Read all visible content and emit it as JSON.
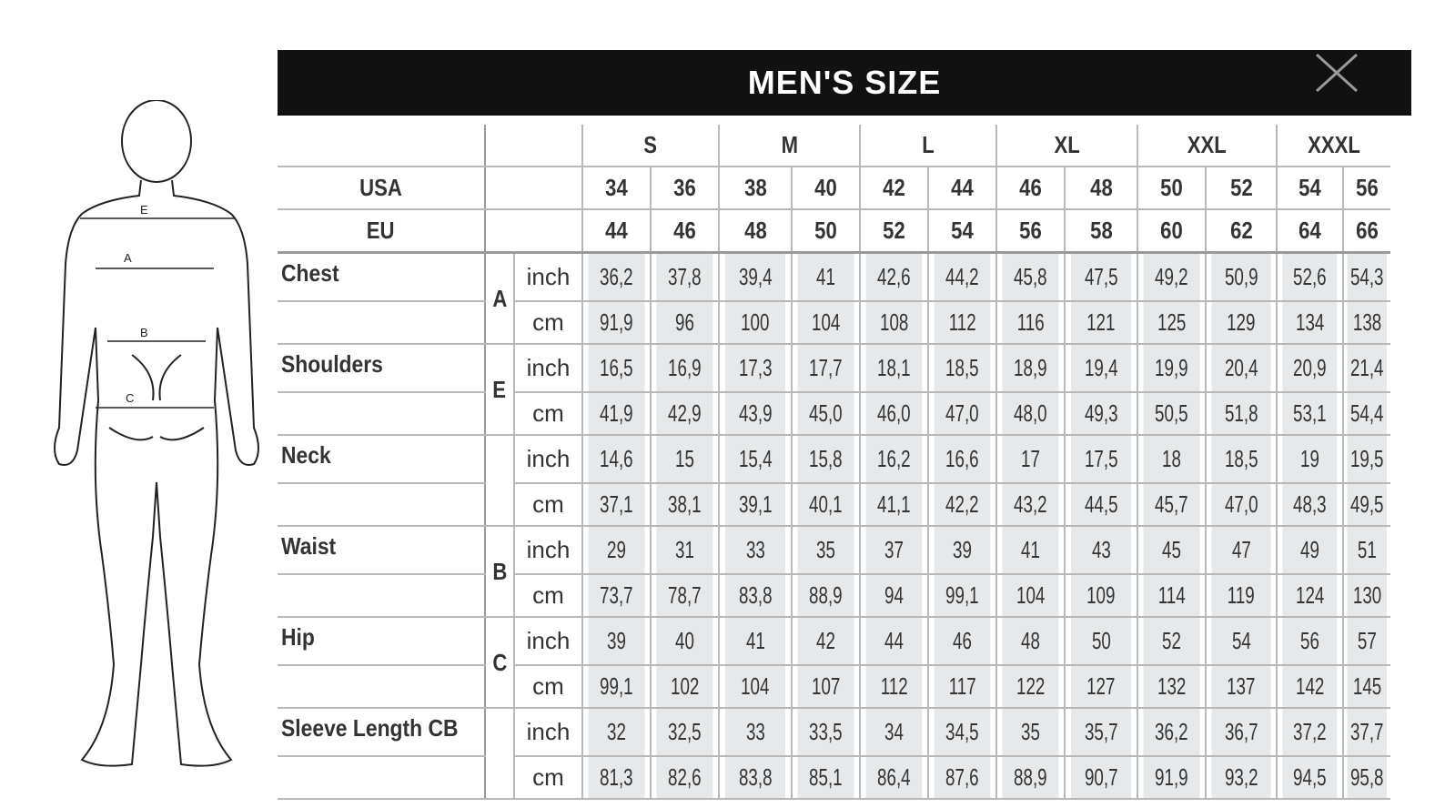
{
  "title": "MEN'S SIZE",
  "close_icon": "close-x-icon",
  "figure_labels": [
    "E",
    "A",
    "B",
    "C"
  ],
  "sizes": [
    "S",
    "M",
    "L",
    "XL",
    "XXL",
    "XXXL"
  ],
  "usa_label": "USA",
  "eu_label": "EU",
  "usa": [
    "34",
    "36",
    "38",
    "40",
    "42",
    "44",
    "46",
    "48",
    "50",
    "52",
    "54",
    "56"
  ],
  "eu": [
    "44",
    "46",
    "48",
    "50",
    "52",
    "54",
    "56",
    "58",
    "60",
    "62",
    "64",
    "66"
  ],
  "measurements": [
    {
      "name": "Chest",
      "letter": "A",
      "inch": [
        "36,2",
        "37,8",
        "39,4",
        "41",
        "42,6",
        "44,2",
        "45,8",
        "47,5",
        "49,2",
        "50,9",
        "52,6",
        "54,3"
      ],
      "cm": [
        "91,9",
        "96",
        "100",
        "104",
        "108",
        "112",
        "116",
        "121",
        "125",
        "129",
        "134",
        "138"
      ]
    },
    {
      "name": "Shoulders",
      "letter": "E",
      "inch": [
        "16,5",
        "16,9",
        "17,3",
        "17,7",
        "18,1",
        "18,5",
        "18,9",
        "19,4",
        "19,9",
        "20,4",
        "20,9",
        "21,4"
      ],
      "cm": [
        "41,9",
        "42,9",
        "43,9",
        "45,0",
        "46,0",
        "47,0",
        "48,0",
        "49,3",
        "50,5",
        "51,8",
        "53,1",
        "54,4"
      ]
    },
    {
      "name": "Neck",
      "letter": "",
      "inch": [
        "14,6",
        "15",
        "15,4",
        "15,8",
        "16,2",
        "16,6",
        "17",
        "17,5",
        "18",
        "18,5",
        "19",
        "19,5"
      ],
      "cm": [
        "37,1",
        "38,1",
        "39,1",
        "40,1",
        "41,1",
        "42,2",
        "43,2",
        "44,5",
        "45,7",
        "47,0",
        "48,3",
        "49,5"
      ]
    },
    {
      "name": "Waist",
      "letter": "B",
      "inch": [
        "29",
        "31",
        "33",
        "35",
        "37",
        "39",
        "41",
        "43",
        "45",
        "47",
        "49",
        "51"
      ],
      "cm": [
        "73,7",
        "78,7",
        "83,8",
        "88,9",
        "94",
        "99,1",
        "104",
        "109",
        "114",
        "119",
        "124",
        "130"
      ]
    },
    {
      "name": "Hip",
      "letter": "C",
      "inch": [
        "39",
        "40",
        "41",
        "42",
        "44",
        "46",
        "48",
        "50",
        "52",
        "54",
        "56",
        "57"
      ],
      "cm": [
        "99,1",
        "102",
        "104",
        "107",
        "112",
        "117",
        "122",
        "127",
        "132",
        "137",
        "142",
        "145"
      ]
    },
    {
      "name": "Sleeve Length CB",
      "letter": "",
      "inch": [
        "32",
        "32,5",
        "33",
        "33,5",
        "34",
        "34,5",
        "35",
        "35,7",
        "36,2",
        "36,7",
        "37,2",
        "37,7"
      ],
      "cm": [
        "81,3",
        "82,6",
        "83,8",
        "85,1",
        "86,4",
        "87,6",
        "88,9",
        "90,7",
        "91,9",
        "93,2",
        "94,5",
        "95,8"
      ]
    }
  ],
  "unit_inch": "inch",
  "unit_cm": "cm",
  "colors": {
    "title_bg": "#111111",
    "cell_bg": "#e6e8ea",
    "grid": "#b8b8b8"
  }
}
